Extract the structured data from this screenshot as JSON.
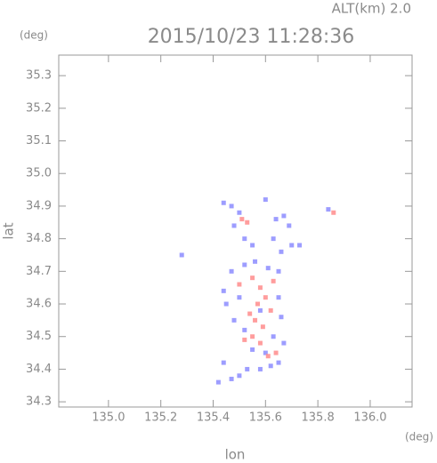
{
  "chart_data": {
    "type": "scatter",
    "title": "2015/10/23 11:28:36",
    "subtitle": "ALT(km) 2.0",
    "x_label": "lon",
    "y_label": "lat",
    "x_unit": "(deg)",
    "y_unit": "(deg)",
    "xlim": [
      134.81,
      136.16
    ],
    "ylim": [
      34.284,
      35.363
    ],
    "xticks": [
      {
        "value": 135,
        "label": "135.0"
      },
      135.2,
      135.4,
      135.6,
      135.8,
      {
        "value": 136,
        "label": "136.0"
      }
    ],
    "yticks": [
      34.3,
      34.4,
      34.5,
      34.6,
      34.7,
      34.8,
      34.9,
      {
        "value": 35,
        "label": "35.0"
      },
      35.1,
      35.2,
      35.3
    ],
    "series": [
      {
        "color": "#8c8cff",
        "x": [
          135.44,
          135.47,
          135.5,
          135.48,
          135.52,
          135.55,
          135.6,
          135.64,
          135.67,
          135.69,
          135.63,
          135.66,
          135.7,
          135.73,
          135.28,
          135.84,
          135.44,
          135.47,
          135.52,
          135.56,
          135.61,
          135.65,
          135.45,
          135.48,
          135.5,
          135.65,
          135.66,
          135.63,
          135.67,
          135.44,
          135.47,
          135.5,
          135.53,
          135.42,
          135.58,
          135.62,
          135.65,
          135.6,
          135.55,
          135.52,
          135.58
        ],
        "values": [
          34.91,
          34.9,
          34.88,
          34.84,
          34.8,
          34.78,
          34.92,
          34.86,
          34.87,
          34.84,
          34.8,
          34.76,
          34.78,
          34.78,
          34.75,
          34.89,
          34.64,
          34.7,
          34.72,
          34.73,
          34.71,
          34.7,
          34.6,
          34.55,
          34.62,
          34.62,
          34.56,
          34.5,
          34.48,
          34.42,
          34.37,
          34.38,
          34.4,
          34.36,
          34.4,
          34.41,
          34.42,
          34.45,
          34.46,
          34.52,
          34.58
        ]
      },
      {
        "color": "#ff8c8c",
        "x": [
          135.51,
          135.53,
          135.86,
          135.55,
          135.58,
          135.6,
          135.57,
          135.54,
          135.62,
          135.59,
          135.55,
          135.52,
          135.58,
          135.64,
          135.61,
          135.5,
          135.63,
          135.56
        ],
        "values": [
          34.86,
          34.85,
          34.88,
          34.68,
          34.65,
          34.62,
          34.6,
          34.57,
          34.58,
          34.53,
          34.5,
          34.49,
          34.48,
          34.45,
          34.44,
          34.66,
          34.67,
          34.55
        ]
      }
    ]
  }
}
